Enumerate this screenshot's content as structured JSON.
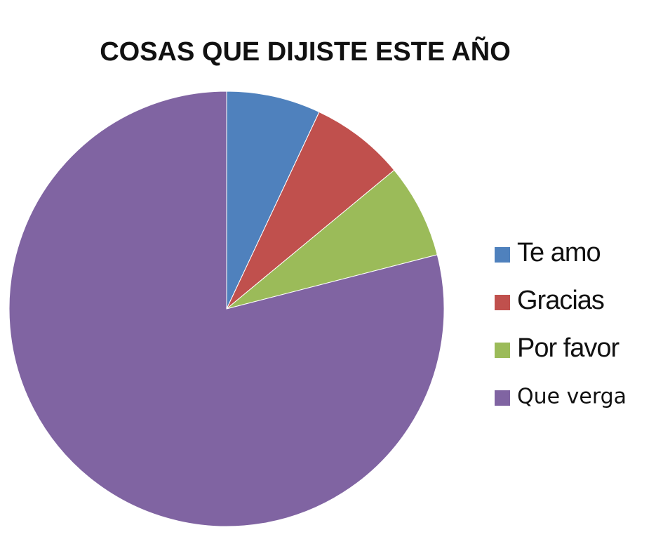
{
  "chart_data": {
    "type": "pie",
    "title": "COSAS QUE DIJISTE ESTE AÑO",
    "categories": [
      "Te amo",
      "Gracias",
      "Por favor",
      "Que verga"
    ],
    "values": [
      7,
      7,
      7,
      79
    ],
    "colors": [
      "#4f81bd",
      "#c0504d",
      "#9bbb59",
      "#8064a2"
    ],
    "legend": "right"
  }
}
